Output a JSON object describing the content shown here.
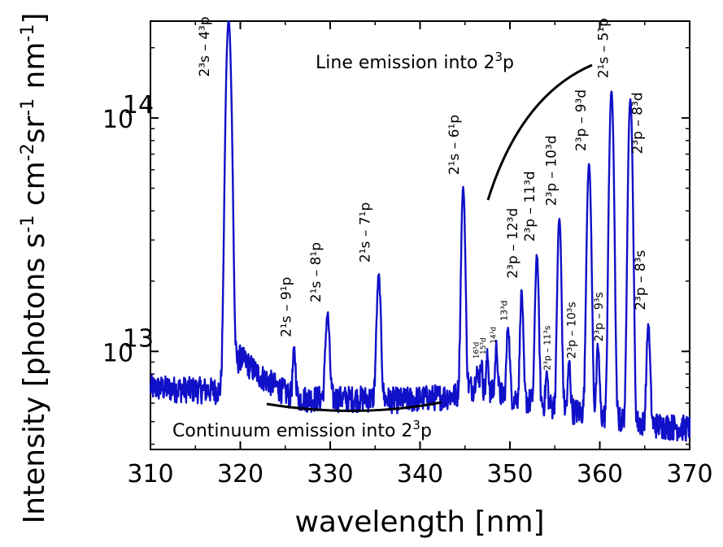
{
  "chart_data": {
    "type": "line",
    "title": "",
    "xlabel": "wavelength [nm]",
    "ylabel": "Intensity [photons s-1 cm-2 sr-1 nm-1]",
    "xlim": [
      310,
      370
    ],
    "ylim": [
      3800000000000.0,
      260000000000000.0
    ],
    "y_scale": "log",
    "x_ticks": [
      "310",
      "320",
      "330",
      "340",
      "350",
      "360",
      "370"
    ],
    "y_ticks": [
      {
        "label": "10",
        "exp": "13",
        "value": 10000000000000.0
      },
      {
        "label": "10",
        "exp": "14",
        "value": 100000000000000.0
      }
    ],
    "grid": false,
    "line_color": "#1010c8",
    "series": [
      {
        "baseline": [
          [
            310,
            7000000000000.0
          ],
          [
            318,
            6800000000000.0
          ],
          [
            320,
            9500000000000.0
          ],
          [
            322,
            8000000000000.0
          ],
          [
            326,
            6300000000000.0
          ],
          [
            334,
            6300000000000.0
          ],
          [
            338,
            6200000000000.0
          ],
          [
            344,
            6500000000000.0
          ],
          [
            345.3,
            7100000000000.0
          ],
          [
            350,
            6400000000000.0
          ],
          [
            355,
            5800000000000.0
          ],
          [
            360,
            5300000000000.0
          ],
          [
            365,
            4900000000000.0
          ],
          [
            370,
            4700000000000.0
          ]
        ],
        "peaks": [
          {
            "x": 318.7,
            "y": 260000000000000.0,
            "w": 0.25
          },
          {
            "x": 326.0,
            "y": 10000000000000.0,
            "w": 0.15
          },
          {
            "x": 329.7,
            "y": 14500000000000.0,
            "w": 0.2
          },
          {
            "x": 335.4,
            "y": 21000000000000.0,
            "w": 0.2
          },
          {
            "x": 344.8,
            "y": 50000000000000.0,
            "w": 0.18
          },
          {
            "x": 346.3,
            "y": 8500000000000.0,
            "w": 0.12
          },
          {
            "x": 346.8,
            "y": 9000000000000.0,
            "w": 0.12
          },
          {
            "x": 347.5,
            "y": 9500000000000.0,
            "w": 0.12
          },
          {
            "x": 348.5,
            "y": 10500000000000.0,
            "w": 0.13
          },
          {
            "x": 349.8,
            "y": 13000000000000.0,
            "w": 0.15
          },
          {
            "x": 351.3,
            "y": 18000000000000.0,
            "w": 0.15
          },
          {
            "x": 353.0,
            "y": 26000000000000.0,
            "w": 0.17
          },
          {
            "x": 354.1,
            "y": 8000000000000.0,
            "w": 0.12
          },
          {
            "x": 355.5,
            "y": 37000000000000.0,
            "w": 0.18
          },
          {
            "x": 356.6,
            "y": 9000000000000.0,
            "w": 0.13
          },
          {
            "x": 358.8,
            "y": 63000000000000.0,
            "w": 0.2
          },
          {
            "x": 359.8,
            "y": 10500000000000.0,
            "w": 0.14
          },
          {
            "x": 361.3,
            "y": 130000000000000.0,
            "w": 0.2
          },
          {
            "x": 363.4,
            "y": 120000000000000.0,
            "w": 0.2
          },
          {
            "x": 365.4,
            "y": 13000000000000.0,
            "w": 0.17
          }
        ]
      }
    ],
    "annotations": {
      "line_emission": {
        "base": "Line emission into 2",
        "sup": "3",
        "tail": "p"
      },
      "continuum": {
        "base": "Continuum emission into 2",
        "sup": "3",
        "tail": "p"
      },
      "peak_labels": [
        {
          "text": "2³s – 4³p",
          "x": 316.5,
          "y": 150000000000000.0,
          "size": 17
        },
        {
          "text": "2¹s – 9¹p",
          "x": 325.6,
          "y": 11500000000000.0,
          "size": 17
        },
        {
          "text": "2¹s – 8¹p",
          "x": 328.9,
          "y": 16200000000000.0,
          "size": 17
        },
        {
          "text": "2¹s – 7¹p",
          "x": 334.4,
          "y": 24000000000000.0,
          "size": 17
        },
        {
          "text": "2¹s – 6¹p",
          "x": 344.3,
          "y": 57000000000000.0,
          "size": 17
        },
        {
          "text": "16³d",
          "x": 346.5,
          "y": 9300000000000.0,
          "size": 9
        },
        {
          "text": "15³d",
          "x": 347.3,
          "y": 9700000000000.0,
          "size": 9
        },
        {
          "text": "14³d",
          "x": 348.4,
          "y": 10800000000000.0,
          "size": 9
        },
        {
          "text": "13³d",
          "x": 349.7,
          "y": 13500000000000.0,
          "size": 11
        },
        {
          "text": "2³p – 12³d",
          "x": 350.8,
          "y": 20500000000000.0,
          "size": 17
        },
        {
          "text": "2³p – 11³d",
          "x": 352.7,
          "y": 29500000000000.0,
          "size": 17
        },
        {
          "text": "2³p – 11³s",
          "x": 354.5,
          "y": 8300000000000.0,
          "size": 11
        },
        {
          "text": "2³p – 10³d",
          "x": 355.1,
          "y": 42000000000000.0,
          "size": 17
        },
        {
          "text": "2³p – 10³s",
          "x": 357.3,
          "y": 9300000000000.0,
          "size": 14
        },
        {
          "text": "2³p – 9³d",
          "x": 358.4,
          "y": 72000000000000.0,
          "size": 17
        },
        {
          "text": "2³p – 9³s",
          "x": 360.3,
          "y": 11000000000000.0,
          "size": 14
        },
        {
          "text": "2¹s – 5¹p",
          "x": 360.9,
          "y": 148000000000000.0,
          "size": 17
        },
        {
          "text": "2³p – 8³d",
          "x": 364.7,
          "y": 70000000000000.0,
          "size": 17
        },
        {
          "text": "2³p – 8³s",
          "x": 365.0,
          "y": 15000000000000.0,
          "size": 17
        }
      ]
    }
  }
}
